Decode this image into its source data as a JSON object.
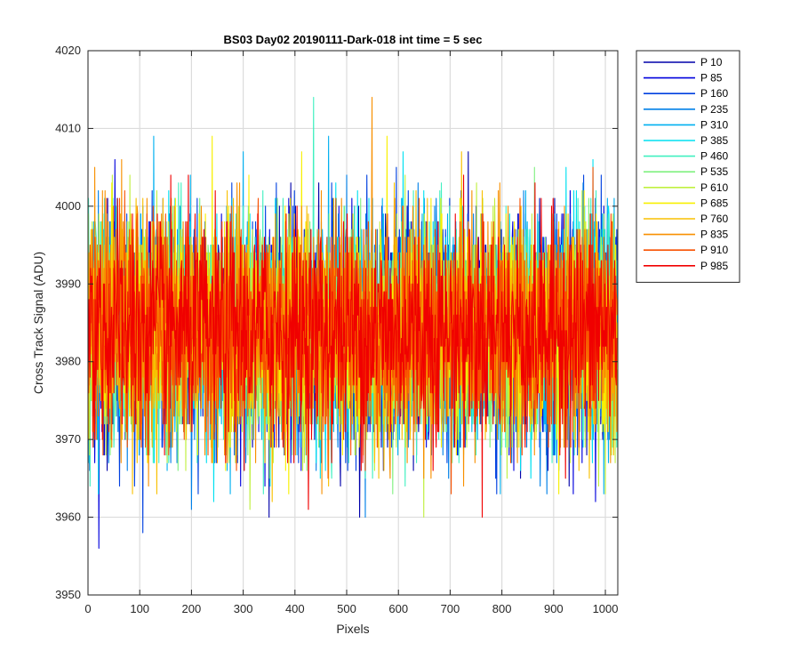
{
  "chart_data": {
    "type": "line",
    "title": "BS03 Day02 20190111-Dark-018 int time = 5 sec",
    "xlabel": "Pixels",
    "ylabel": "Cross Track Signal (ADU)",
    "xlim": [
      0,
      1024
    ],
    "ylim": [
      3950,
      4020
    ],
    "xticks": [
      0,
      100,
      200,
      300,
      400,
      500,
      600,
      700,
      800,
      900,
      1000
    ],
    "yticks": [
      3950,
      3960,
      3970,
      3980,
      3990,
      4000,
      4010,
      4020
    ],
    "grid": true,
    "legend_position": "outside-top-right",
    "noise": {
      "mean": 3984,
      "std": 7,
      "points_per_series": 1024
    },
    "series": [
      {
        "name": "P 10",
        "color": "#0000aa"
      },
      {
        "name": "P 85",
        "color": "#0000dd"
      },
      {
        "name": "P 160",
        "color": "#0040e0"
      },
      {
        "name": "P 235",
        "color": "#0080e8"
      },
      {
        "name": "P 310",
        "color": "#00b0f0"
      },
      {
        "name": "P 385",
        "color": "#00e0f0"
      },
      {
        "name": "P 460",
        "color": "#40f0c0"
      },
      {
        "name": "P 535",
        "color": "#80f080"
      },
      {
        "name": "P 610",
        "color": "#c0f040"
      },
      {
        "name": "P 685",
        "color": "#f8f000"
      },
      {
        "name": "P 760",
        "color": "#f8c000"
      },
      {
        "name": "P 835",
        "color": "#f89000"
      },
      {
        "name": "P 910",
        "color": "#f85000"
      },
      {
        "name": "P 985",
        "color": "#f00000"
      }
    ]
  }
}
